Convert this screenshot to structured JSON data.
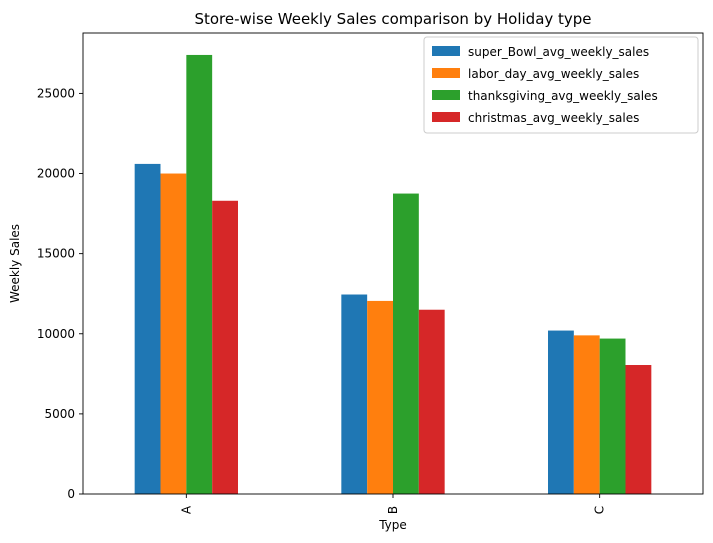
{
  "chart_data": {
    "type": "bar",
    "title": "Store-wise Weekly Sales comparison by Holiday type",
    "xlabel": "Type",
    "ylabel": "Weekly Sales",
    "categories": [
      "A",
      "B",
      "C"
    ],
    "series": [
      {
        "name": "super_Bowl_avg_weekly_sales",
        "color": "#1f77b4",
        "values": [
          20600,
          12450,
          10200
        ]
      },
      {
        "name": "labor_day_avg_weekly_sales",
        "color": "#ff7f0e",
        "values": [
          20000,
          12050,
          9900
        ]
      },
      {
        "name": "thanksgiving_avg_weekly_sales",
        "color": "#2ca02c",
        "values": [
          27400,
          18750,
          9700
        ]
      },
      {
        "name": "christmas_avg_weekly_sales",
        "color": "#d62728",
        "values": [
          18300,
          11500,
          8050
        ]
      }
    ],
    "ylim": [
      0,
      28770
    ],
    "yticks": [
      0,
      5000,
      10000,
      15000,
      20000,
      25000
    ],
    "yticklabels": [
      "0",
      "5000",
      "10000",
      "15000",
      "20000",
      "25000"
    ],
    "grid": false,
    "legend_position": "top-right"
  }
}
